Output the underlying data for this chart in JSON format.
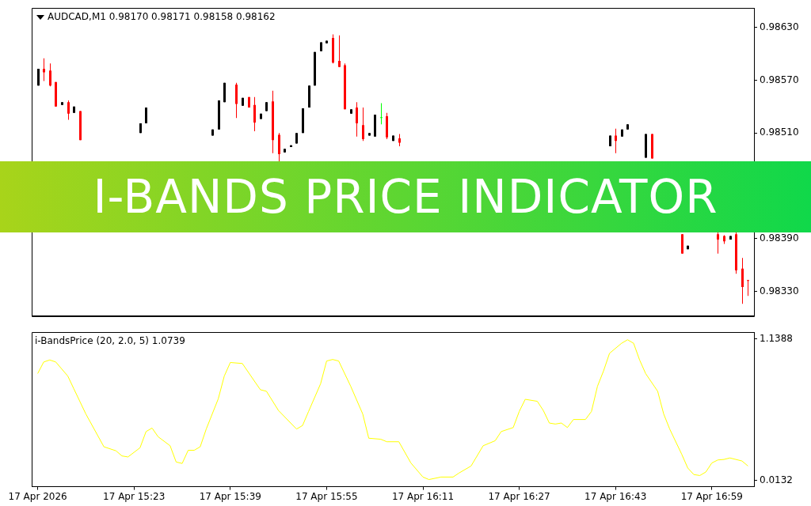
{
  "chart_data": [
    {
      "type": "candlestick",
      "title": "AUDCAD,M1  0.98170 0.98171 0.98158 0.98162",
      "annotations": [
        "I-BANDS PRICE INDICATOR"
      ],
      "x": [
        "2026-04-17T15:07",
        "2026-04-17T15:08",
        "2026-04-17T15:09",
        "2026-04-17T15:10",
        "2026-04-17T15:11",
        "2026-04-17T15:12",
        "2026-04-17T15:13",
        "2026-04-17T15:14",
        "2026-04-17T15:24",
        "2026-04-17T15:25",
        "2026-04-17T15:36",
        "2026-04-17T15:37",
        "2026-04-17T15:38",
        "2026-04-17T15:40",
        "2026-04-17T15:41",
        "2026-04-17T15:42",
        "2026-04-17T15:43",
        "2026-04-17T15:44",
        "2026-04-17T15:45",
        "2026-04-17T15:46",
        "2026-04-17T15:47",
        "2026-04-17T15:48",
        "2026-04-17T15:49",
        "2026-04-17T15:50",
        "2026-04-17T15:51",
        "2026-04-17T15:52",
        "2026-04-17T15:53",
        "2026-04-17T15:54",
        "2026-04-17T15:55",
        "2026-04-17T15:56",
        "2026-04-17T15:57",
        "2026-04-17T15:58",
        "2026-04-17T15:59",
        "2026-04-17T16:00",
        "2026-04-17T16:01",
        "2026-04-17T16:02",
        "2026-04-17T16:03",
        "2026-04-17T16:04",
        "2026-04-17T16:05",
        "2026-04-17T16:06",
        "2026-04-17T16:07",
        "2026-04-17T16:42",
        "2026-04-17T16:43",
        "2026-04-17T16:44",
        "2026-04-17T16:45",
        "2026-04-17T16:48",
        "2026-04-17T16:49",
        "2026-04-17T16:54",
        "2026-04-17T16:55",
        "2026-04-17T17:00",
        "2026-04-17T17:01",
        "2026-04-17T17:02",
        "2026-04-17T17:03",
        "2026-04-17T17:04",
        "2026-04-17T17:05"
      ],
      "ohlc": [
        [
          0.98564,
          0.98583,
          0.98564,
          0.98583
        ],
        [
          0.98583,
          0.98595,
          0.98569,
          0.98579
        ],
        [
          0.98581,
          0.98589,
          0.98563,
          0.98564
        ],
        [
          0.98568,
          0.98568,
          0.9854,
          0.9854
        ],
        [
          0.98542,
          0.98545,
          0.98542,
          0.98545
        ],
        [
          0.98545,
          0.98547,
          0.98525,
          0.98532
        ],
        [
          0.98533,
          0.9854,
          0.98533,
          0.9854
        ],
        [
          0.98535,
          0.98535,
          0.98502,
          0.98502
        ],
        [
          0.9851,
          0.98521,
          0.9851,
          0.98521
        ],
        [
          0.98521,
          0.98539,
          0.98521,
          0.98539
        ],
        [
          0.98507,
          0.98514,
          0.98507,
          0.98514
        ],
        [
          0.98514,
          0.98547,
          0.98514,
          0.98547
        ],
        [
          0.98545,
          0.98567,
          0.98545,
          0.98567
        ],
        [
          0.98565,
          0.98567,
          0.98527,
          0.98543
        ],
        [
          0.98541,
          0.9855,
          0.98541,
          0.9855
        ],
        [
          0.98551,
          0.98551,
          0.98539,
          0.98539
        ],
        [
          0.98542,
          0.98551,
          0.98512,
          0.98522
        ],
        [
          0.98526,
          0.98532,
          0.98526,
          0.98532
        ],
        [
          0.98535,
          0.98545,
          0.98535,
          0.98545
        ],
        [
          0.98546,
          0.98558,
          0.98487,
          0.98502
        ],
        [
          0.98508,
          0.9851,
          0.98477,
          0.98486
        ],
        [
          0.98488,
          0.98492,
          0.98488,
          0.98492
        ],
        [
          0.98494,
          0.98496,
          0.98494,
          0.98496
        ],
        [
          0.98498,
          0.9851,
          0.98498,
          0.9851
        ],
        [
          0.9851,
          0.98538,
          0.9851,
          0.98538
        ],
        [
          0.98539,
          0.98564,
          0.98539,
          0.98564
        ],
        [
          0.98564,
          0.98602,
          0.98564,
          0.98602
        ],
        [
          0.98603,
          0.98613,
          0.98603,
          0.98613
        ],
        [
          0.98612,
          0.98615,
          0.98612,
          0.98615
        ],
        [
          0.98618,
          0.98622,
          0.98589,
          0.9859
        ],
        [
          0.98592,
          0.98621,
          0.98585,
          0.98585
        ],
        [
          0.98587,
          0.98589,
          0.98537,
          0.98537
        ],
        [
          0.98532,
          0.98537,
          0.98532,
          0.98537
        ],
        [
          0.98539,
          0.98545,
          0.98506,
          0.98521
        ],
        [
          0.98519,
          0.98539,
          0.98501,
          0.98503
        ],
        [
          0.98507,
          0.9851,
          0.98507,
          0.9851
        ],
        [
          0.98506,
          0.98531,
          0.98506,
          0.98531
        ],
        [
          0.98528,
          0.98544,
          0.9852,
          0.98528
        ],
        [
          0.98529,
          0.98533,
          0.98503,
          0.98505
        ],
        [
          0.98501,
          0.98507,
          0.98501,
          0.98507
        ],
        [
          0.98504,
          0.98509,
          0.98495,
          0.98499
        ],
        [
          0.98495,
          0.98507,
          0.98495,
          0.98507
        ],
        [
          0.98507,
          0.98515,
          0.98487,
          0.98501
        ],
        [
          0.98506,
          0.98514,
          0.98506,
          0.98514
        ],
        [
          0.98514,
          0.9852,
          0.98514,
          0.9852
        ],
        [
          0.98482,
          0.98509,
          0.98482,
          0.98509
        ],
        [
          0.98509,
          0.98509,
          0.98481,
          0.98481
        ],
        [
          0.98395,
          0.98395,
          0.98373,
          0.98373
        ],
        [
          0.98378,
          0.98382,
          0.98378,
          0.98382
        ],
        [
          0.98395,
          0.98398,
          0.98373,
          0.98389
        ],
        [
          0.98393,
          0.98394,
          0.98384,
          0.98387
        ],
        [
          0.98389,
          0.98393,
          0.98389,
          0.98393
        ],
        [
          0.98395,
          0.98397,
          0.9835,
          0.98354
        ],
        [
          0.98356,
          0.98368,
          0.98316,
          0.98335
        ],
        [
          0.98343,
          0.98343,
          0.98325,
          0.98342
        ]
      ],
      "colors": [
        "#000000",
        "#ff0000",
        "#ff0000",
        "#ff0000",
        "#000000",
        "#ff0000",
        "#000000",
        "#ff0000",
        "#000000",
        "#000000",
        "#000000",
        "#000000",
        "#000000",
        "#ff0000",
        "#000000",
        "#ff0000",
        "#ff0000",
        "#000000",
        "#000000",
        "#ff0000",
        "#ff0000",
        "#000000",
        "#000000",
        "#000000",
        "#000000",
        "#000000",
        "#000000",
        "#000000",
        "#000000",
        "#ff0000",
        "#ff0000",
        "#ff0000",
        "#000000",
        "#ff0000",
        "#ff0000",
        "#000000",
        "#000000",
        "#00ff00",
        "#ff0000",
        "#000000",
        "#ff0000",
        "#000000",
        "#ff0000",
        "#000000",
        "#000000",
        "#000000",
        "#ff0000",
        "#ff0000",
        "#000000",
        "#ff0000",
        "#ff0000",
        "#000000",
        "#ff0000",
        "#ff0000",
        "#ff0000"
      ],
      "xlim": [
        "2026-04-17T15:06",
        "2026-04-17T17:06"
      ],
      "ylim": [
        0.98302,
        0.98652
      ],
      "yticks": [
        {
          "value": 0.9863,
          "label": "0.98630"
        },
        {
          "value": 0.9857,
          "label": "0.98570"
        },
        {
          "value": 0.9851,
          "label": "0.98510"
        },
        {
          "value": 0.9839,
          "label": "0.98390"
        },
        {
          "value": 0.9833,
          "label": "0.98330"
        }
      ],
      "tick_labels": "y",
      "legend": false
    },
    {
      "type": "line",
      "title": "i-BandsPrice (20, 2.0, 5) 1.0739",
      "marker": "none",
      "legend": false,
      "series": [
        {
          "color": "#ffff00",
          "type": "line",
          "x": [
            "2026-04-17T15:07",
            "2026-04-17T15:08",
            "2026-04-17T15:09",
            "2026-04-17T15:10",
            "2026-04-17T15:12",
            "2026-04-17T15:13",
            "2026-04-17T15:15",
            "2026-04-17T15:18",
            "2026-04-17T15:20",
            "2026-04-17T15:21",
            "2026-04-17T15:22",
            "2026-04-17T15:24",
            "2026-04-17T15:25",
            "2026-04-17T15:26",
            "2026-04-17T15:27",
            "2026-04-17T15:29",
            "2026-04-17T15:30",
            "2026-04-17T15:31",
            "2026-04-17T15:32",
            "2026-04-17T15:33",
            "2026-04-17T15:34",
            "2026-04-17T15:35",
            "2026-04-17T15:37",
            "2026-04-17T15:38",
            "2026-04-17T15:39",
            "2026-04-17T15:41",
            "2026-04-17T15:43",
            "2026-04-17T15:44",
            "2026-04-17T15:45",
            "2026-04-17T15:47",
            "2026-04-17T15:50",
            "2026-04-17T15:51",
            "2026-04-17T15:52",
            "2026-04-17T15:54",
            "2026-04-17T15:55",
            "2026-04-17T15:56",
            "2026-04-17T15:57",
            "2026-04-17T15:59",
            "2026-04-17T16:01",
            "2026-04-17T16:02",
            "2026-04-17T16:04",
            "2026-04-17T16:05",
            "2026-04-17T16:07",
            "2026-04-17T16:09",
            "2026-04-17T16:11",
            "2026-04-17T16:12",
            "2026-04-17T16:14",
            "2026-04-17T16:16",
            "2026-04-17T16:17",
            "2026-04-17T16:19",
            "2026-04-17T16:21",
            "2026-04-17T16:23",
            "2026-04-17T16:24",
            "2026-04-17T16:26",
            "2026-04-17T16:27",
            "2026-04-17T16:28",
            "2026-04-17T16:30",
            "2026-04-17T16:31",
            "2026-04-17T16:32",
            "2026-04-17T16:33",
            "2026-04-17T16:34",
            "2026-04-17T16:35",
            "2026-04-17T16:36",
            "2026-04-17T16:38",
            "2026-04-17T16:39",
            "2026-04-17T16:40",
            "2026-04-17T16:41",
            "2026-04-17T16:42",
            "2026-04-17T16:44",
            "2026-04-17T16:45",
            "2026-04-17T16:46",
            "2026-04-17T16:47",
            "2026-04-17T16:48",
            "2026-04-17T16:50",
            "2026-04-17T16:51",
            "2026-04-17T16:52",
            "2026-04-17T16:54",
            "2026-04-17T16:55",
            "2026-04-17T16:56",
            "2026-04-17T16:57",
            "2026-04-17T16:58",
            "2026-04-17T16:59",
            "2026-04-17T17:00",
            "2026-04-17T17:01",
            "2026-04-17T17:02",
            "2026-04-17T17:04",
            "2026-04-17T17:05"
          ],
          "values": [
            0.865,
            0.957,
            0.973,
            0.957,
            0.845,
            0.744,
            0.543,
            0.282,
            0.25,
            0.209,
            0.201,
            0.274,
            0.403,
            0.431,
            0.362,
            0.29,
            0.161,
            0.149,
            0.254,
            0.254,
            0.282,
            0.423,
            0.664,
            0.845,
            0.953,
            0.945,
            0.805,
            0.736,
            0.724,
            0.571,
            0.423,
            0.451,
            0.563,
            0.784,
            0.965,
            0.977,
            0.965,
            0.764,
            0.543,
            0.35,
            0.342,
            0.322,
            0.322,
            0.153,
            0.041,
            0.021,
            0.041,
            0.041,
            0.073,
            0.129,
            0.29,
            0.33,
            0.403,
            0.435,
            0.563,
            0.66,
            0.644,
            0.571,
            0.471,
            0.463,
            0.471,
            0.435,
            0.499,
            0.499,
            0.563,
            0.764,
            0.885,
            1.026,
            1.106,
            1.134,
            1.106,
            0.973,
            0.865,
            0.724,
            0.543,
            0.423,
            0.222,
            0.113,
            0.061,
            0.053,
            0.081,
            0.153,
            0.177,
            0.181,
            0.193,
            0.169,
            0.129
          ]
        }
      ],
      "xlim": [
        "2026-04-17T15:06",
        "2026-04-17T17:06"
      ],
      "xticks": [
        {
          "value": "2026-04-17T15:07",
          "label": "17 Apr 2026"
        },
        {
          "value": "2026-04-17T15:23",
          "label": "17 Apr 15:23"
        },
        {
          "value": "2026-04-17T15:39",
          "label": "17 Apr 15:39"
        },
        {
          "value": "2026-04-17T15:55",
          "label": "17 Apr 15:55"
        },
        {
          "value": "2026-04-17T16:11",
          "label": "17 Apr 16:11"
        },
        {
          "value": "2026-04-17T16:27",
          "label": "17 Apr 16:27"
        },
        {
          "value": "2026-04-17T16:43",
          "label": "17 Apr 16:43"
        },
        {
          "value": "2026-04-17T16:59",
          "label": "17 Apr 16:59"
        }
      ],
      "ylim": [
        -0.036,
        1.194
      ],
      "yticks": [
        1.1388,
        0.0132
      ]
    }
  ]
}
